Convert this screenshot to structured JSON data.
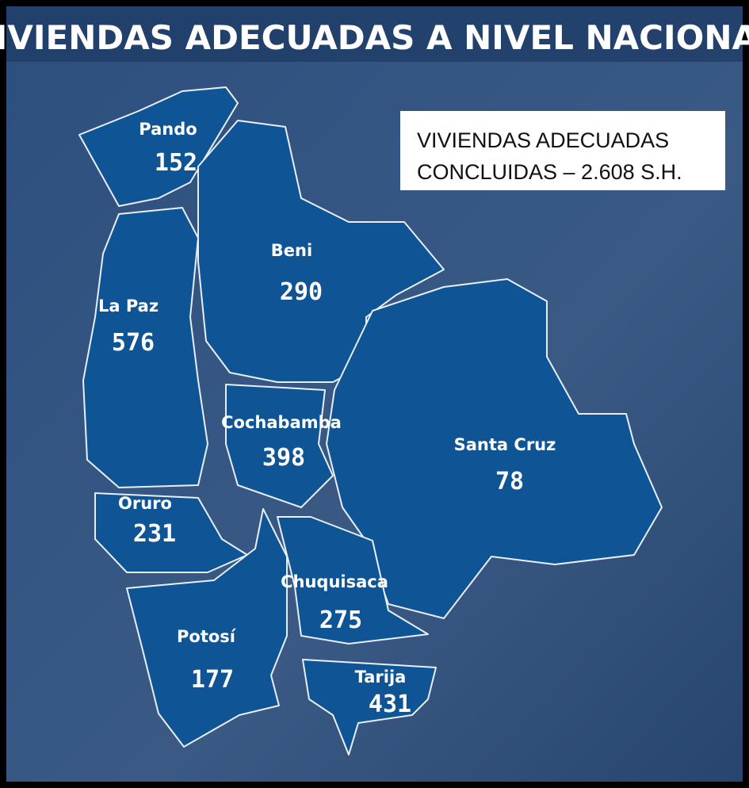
{
  "title": "VIVIENDAS ADECUADAS A NIVEL NACIONAL",
  "summary": {
    "lines": [
      "VIVIENDAS ADECUADAS",
      "CONCLUIDAS – 2.608 S.H."
    ]
  },
  "regions": [
    {
      "name": "Pando",
      "value": 152
    },
    {
      "name": "La Paz",
      "value": 576
    },
    {
      "name": "Beni",
      "value": 290
    },
    {
      "name": "Cochabamba",
      "value": 398
    },
    {
      "name": "Santa Cruz",
      "value": 78
    },
    {
      "name": "Oruro",
      "value": 231
    },
    {
      "name": "Chuquisaca",
      "value": 275
    },
    {
      "name": "Potosí",
      "value": 177
    },
    {
      "name": "Tarija",
      "value": 431
    }
  ]
}
